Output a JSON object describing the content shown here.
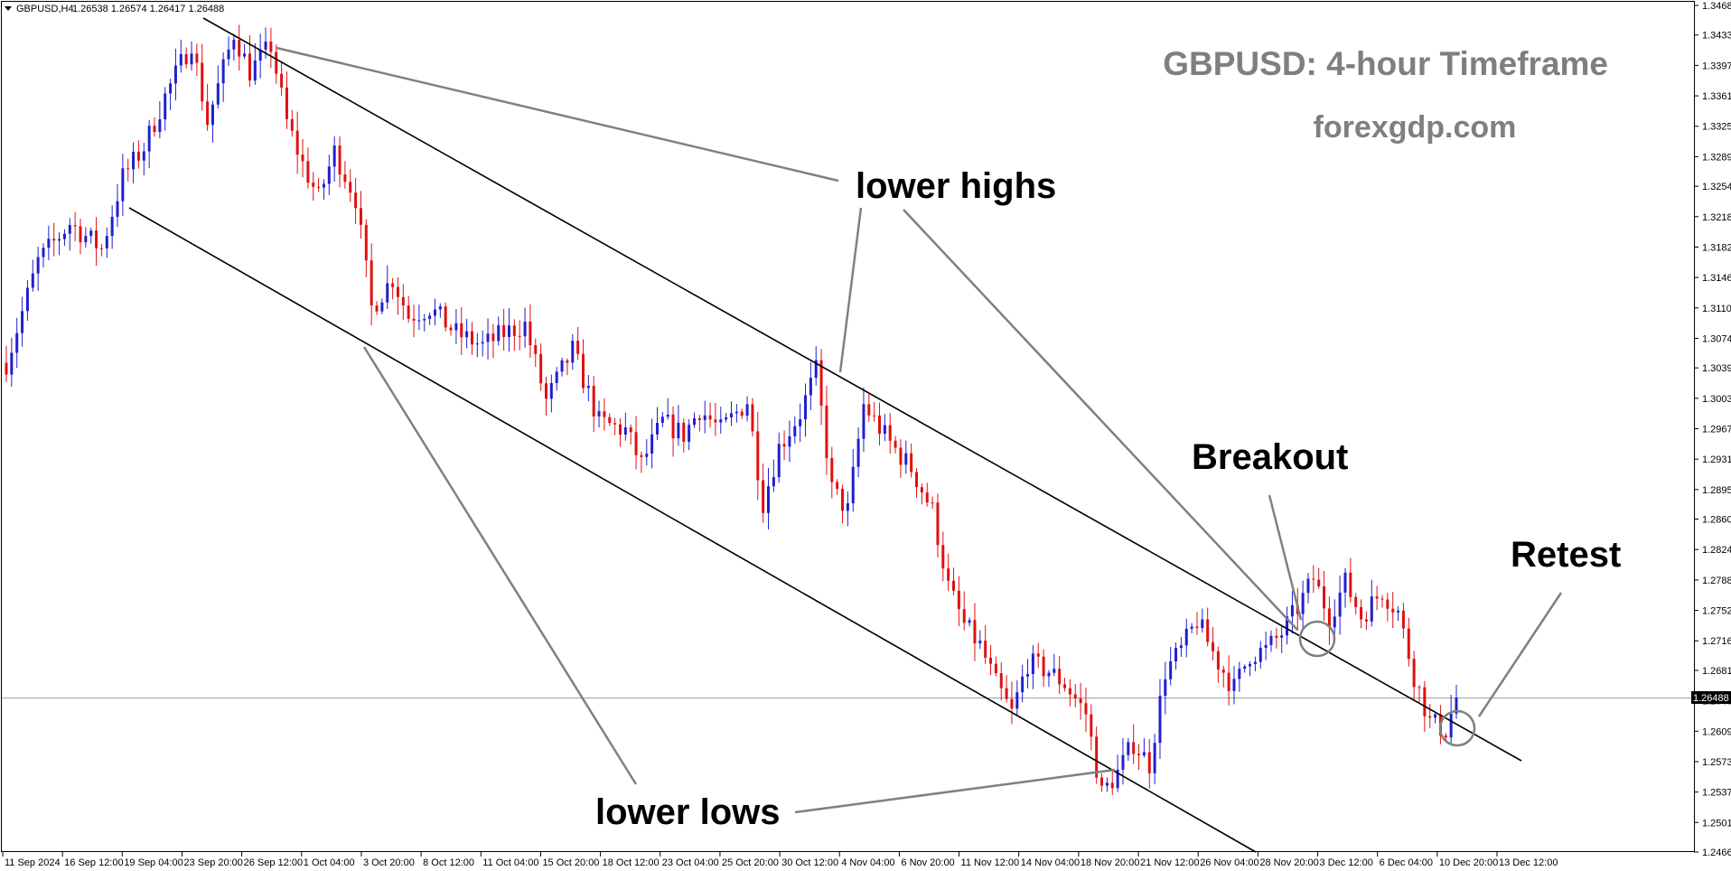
{
  "header": {
    "symbol": "GBPUSD,H4",
    "ohlc": "1.26538 1.26574 1.26417 1.26488"
  },
  "title": "GBPUSD: 4-hour Timeframe",
  "website": "forexgdp.com",
  "annotations": {
    "lower_highs": "lower highs",
    "lower_lows": "lower lows",
    "breakout": "Breakout",
    "retest": "Retest"
  },
  "current_price_label": "1.26488",
  "colors": {
    "bull": "#1f1fd0",
    "bear": "#e01010",
    "trendline": "#000000",
    "annotation_line": "#808080",
    "title": "#7f7f7f"
  },
  "chart_data": {
    "type": "candlestick",
    "timeframe": "H4",
    "ylim": [
      1.2466,
      1.3468
    ],
    "y_ticks": [
      1.3468,
      1.3433,
      1.3397,
      1.3361,
      1.3325,
      1.3289,
      1.3254,
      1.3218,
      1.3182,
      1.3146,
      1.311,
      1.3074,
      1.3039,
      1.3003,
      1.2967,
      1.2931,
      1.2895,
      1.286,
      1.2824,
      1.2788,
      1.2752,
      1.2716,
      1.2681,
      1.2645,
      1.2609,
      1.2573,
      1.2537,
      1.2501,
      1.2466
    ],
    "y_tick_labels": [
      "1.34680",
      "1.34330",
      "1.33970",
      "1.33610",
      "1.33250",
      "1.32890",
      "1.32540",
      "1.32180",
      "1.31820",
      "1.31460",
      "1.31100",
      "1.30740",
      "1.30390",
      "1.30030",
      "1.29670",
      "1.29310",
      "1.28950",
      "1.28600",
      "1.28240",
      "1.27880",
      "1.27520",
      "1.27160",
      "1.26810",
      "1.26450",
      "1.26090",
      "1.25730",
      "1.25370",
      "1.25010",
      "1.24660"
    ],
    "x_tick_labels": [
      "11 Sep 2024",
      "16 Sep 12:00",
      "19 Sep 04:00",
      "23 Sep 20:00",
      "26 Sep 12:00",
      "1 Oct 04:00",
      "3 Oct 20:00",
      "8 Oct 12:00",
      "11 Oct 04:00",
      "15 Oct 20:00",
      "18 Oct 12:00",
      "23 Oct 04:00",
      "25 Oct 20:00",
      "30 Oct 12:00",
      "4 Nov 04:00",
      "6 Nov 20:00",
      "11 Nov 12:00",
      "14 Nov 04:00",
      "18 Nov 20:00",
      "21 Nov 12:00",
      "26 Nov 04:00",
      "28 Nov 20:00",
      "3 Dec 12:00",
      "6 Dec 04:00",
      "10 Dec 20:00",
      "13 Dec 12:00"
    ],
    "current_price": 1.26488,
    "price_path": [
      [
        0,
        1.3045
      ],
      [
        6,
        1.3165
      ],
      [
        12,
        1.321
      ],
      [
        18,
        1.318
      ],
      [
        22,
        1.3265
      ],
      [
        26,
        1.33
      ],
      [
        30,
        1.336
      ],
      [
        35,
        1.3425
      ],
      [
        38,
        1.333
      ],
      [
        43,
        1.3435
      ],
      [
        46,
        1.339
      ],
      [
        50,
        1.342
      ],
      [
        53,
        1.333
      ],
      [
        56,
        1.328
      ],
      [
        59,
        1.324
      ],
      [
        62,
        1.3295
      ],
      [
        66,
        1.324
      ],
      [
        69,
        1.311
      ],
      [
        73,
        1.3145
      ],
      [
        76,
        1.31
      ],
      [
        80,
        1.311
      ],
      [
        85,
        1.308
      ],
      [
        90,
        1.3065
      ],
      [
        94,
        1.308
      ],
      [
        98,
        1.309
      ],
      [
        102,
        1.3
      ],
      [
        107,
        1.306
      ],
      [
        112,
        1.2975
      ],
      [
        117,
        1.2965
      ],
      [
        120,
        1.2925
      ],
      [
        124,
        1.2975
      ],
      [
        128,
        1.296
      ],
      [
        131,
        1.299
      ],
      [
        135,
        1.2965
      ],
      [
        140,
        1.3
      ],
      [
        143,
        1.288
      ],
      [
        146,
        1.2945
      ],
      [
        150,
        1.2985
      ],
      [
        153,
        1.3035
      ],
      [
        156,
        1.2895
      ],
      [
        159,
        1.287
      ],
      [
        162,
        1.2995
      ],
      [
        167,
        1.295
      ],
      [
        171,
        1.292
      ],
      [
        175,
        1.287
      ],
      [
        178,
        1.278
      ],
      [
        181,
        1.2735
      ],
      [
        184,
        1.271
      ],
      [
        187,
        1.2665
      ],
      [
        190,
        1.263
      ],
      [
        193,
        1.269
      ],
      [
        197,
        1.268
      ],
      [
        200,
        1.2665
      ],
      [
        204,
        1.263
      ],
      [
        207,
        1.2535
      ],
      [
        210,
        1.256
      ],
      [
        213,
        1.2595
      ],
      [
        216,
        1.257
      ],
      [
        219,
        1.268
      ],
      [
        222,
        1.2705
      ],
      [
        225,
        1.274
      ],
      [
        229,
        1.269
      ],
      [
        232,
        1.266
      ],
      [
        235,
        1.27
      ],
      [
        238,
        1.2705
      ],
      [
        241,
        1.2725
      ],
      [
        244,
        1.2755
      ],
      [
        247,
        1.279
      ],
      [
        250,
        1.2745
      ],
      [
        253,
        1.2785
      ],
      [
        256,
        1.2745
      ],
      [
        260,
        1.2775
      ],
      [
        263,
        1.275
      ],
      [
        266,
        1.2675
      ],
      [
        269,
        1.262
      ],
      [
        272,
        1.261
      ],
      [
        274,
        1.2649
      ]
    ],
    "trendlines": [
      {
        "name": "upper channel",
        "from": {
          "bar": 30,
          "price": 1.346
        },
        "to": {
          "bar": 274,
          "price": 1.2575
        }
      },
      {
        "name": "lower channel",
        "from": {
          "bar": 23,
          "price": 1.324
        },
        "to": {
          "bar": 235,
          "price": 1.2466
        }
      }
    ],
    "grid": false,
    "legend": "none"
  }
}
